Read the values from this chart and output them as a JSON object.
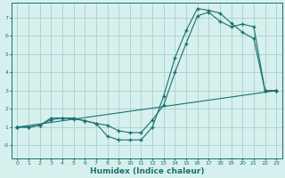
{
  "xlabel": "Humidex (Indice chaleur)",
  "xlim": [
    -0.5,
    23.5
  ],
  "ylim": [
    -0.7,
    7.8
  ],
  "yticks": [
    0,
    1,
    2,
    3,
    4,
    5,
    6,
    7
  ],
  "ytick_labels": [
    "-0",
    "1",
    "2",
    "3",
    "4",
    "5",
    "6",
    "7"
  ],
  "xticks": [
    0,
    1,
    2,
    3,
    4,
    5,
    6,
    7,
    8,
    9,
    10,
    11,
    12,
    13,
    14,
    15,
    16,
    17,
    18,
    19,
    20,
    21,
    22,
    23
  ],
  "bg_color": "#d6f0ee",
  "grid_color": "#aacfcc",
  "line_color": "#1a7070",
  "line1_x": [
    0,
    1,
    2,
    3,
    4,
    5,
    6,
    7,
    8,
    9,
    10,
    11,
    12,
    13,
    14,
    15,
    16,
    17,
    18,
    19,
    20,
    21,
    22,
    23
  ],
  "line1_y": [
    1.0,
    1.0,
    1.1,
    1.4,
    1.5,
    1.5,
    1.35,
    1.2,
    0.5,
    0.3,
    0.3,
    0.3,
    1.0,
    2.7,
    4.8,
    6.3,
    7.5,
    7.4,
    7.25,
    6.7,
    6.2,
    5.85,
    3.0,
    3.0
  ],
  "line2_x": [
    0,
    1,
    2,
    3,
    4,
    5,
    6,
    7,
    8,
    9,
    10,
    11,
    12,
    13,
    14,
    15,
    16,
    17,
    18,
    19,
    20,
    21,
    22,
    23
  ],
  "line2_y": [
    1.0,
    1.0,
    1.1,
    1.5,
    1.5,
    1.45,
    1.35,
    1.2,
    1.1,
    0.8,
    0.7,
    0.7,
    1.4,
    2.2,
    4.0,
    5.6,
    7.1,
    7.3,
    6.8,
    6.5,
    6.65,
    6.5,
    3.0,
    3.0
  ],
  "line3_x": [
    0,
    23
  ],
  "line3_y": [
    1.0,
    3.0
  ]
}
